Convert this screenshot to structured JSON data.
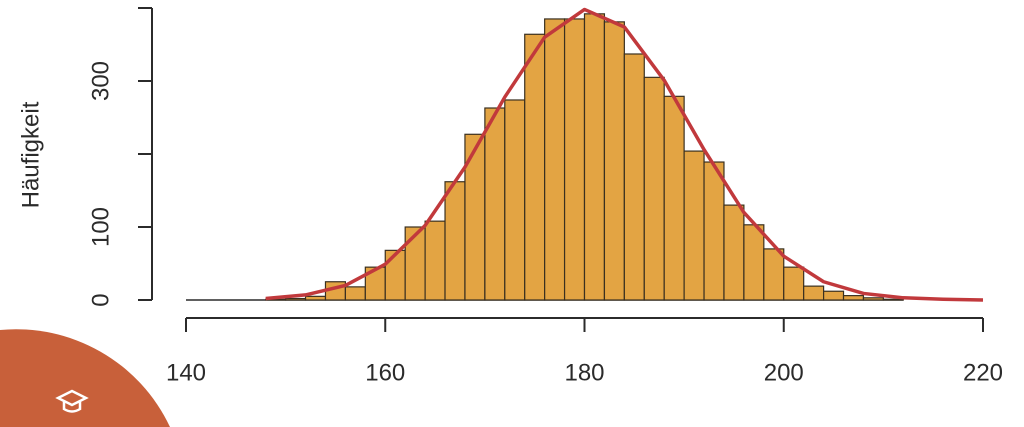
{
  "chart_data": {
    "type": "histogram",
    "ylabel": "Häufigkeit",
    "bins": [
      140,
      142,
      144,
      146,
      148,
      150,
      152,
      154,
      156,
      158,
      160,
      162,
      164,
      166,
      168,
      170,
      172,
      174,
      176,
      178,
      180,
      182,
      184,
      186,
      188,
      190,
      192,
      194,
      196,
      198,
      200,
      202,
      204,
      206,
      208,
      210,
      212
    ],
    "counts": [
      0,
      0,
      0,
      0,
      1,
      2,
      5,
      25,
      18,
      45,
      68,
      100,
      108,
      162,
      227,
      263,
      274,
      364,
      385,
      385,
      392,
      381,
      337,
      305,
      279,
      204,
      189,
      130,
      103,
      70,
      45,
      19,
      12,
      6,
      3,
      1
    ],
    "color": "#e3a443",
    "curve": {
      "color": "#c1393c",
      "x": [
        148,
        152,
        156,
        160,
        164,
        168,
        172,
        176,
        180,
        184,
        188,
        192,
        196,
        200,
        204,
        208,
        212,
        216,
        220
      ],
      "y": [
        2,
        7,
        20,
        49,
        102,
        182,
        278,
        360,
        398,
        374,
        301,
        206,
        120,
        60,
        25,
        9,
        3,
        1,
        0
      ]
    },
    "xlim": [
      140,
      220
    ],
    "xticks": [
      140,
      160,
      180,
      200,
      220
    ],
    "ylim": [
      0,
      400
    ],
    "yticks": [
      0,
      100,
      300
    ],
    "yticks_unlabeled": [
      200,
      400
    ]
  }
}
